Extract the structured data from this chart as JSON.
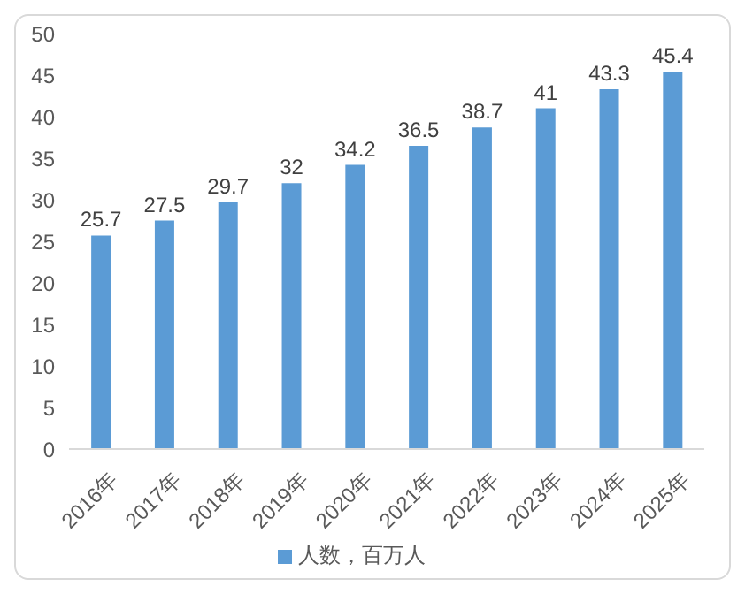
{
  "chart_data": {
    "type": "bar",
    "categories": [
      "2016年",
      "2017年",
      "2018年",
      "2019年",
      "2020年",
      "2021年",
      "2022年",
      "2023年",
      "2024年",
      "2025年"
    ],
    "series": [
      {
        "name": "人数，百万人",
        "color": "#5b9bd5",
        "values": [
          25.7,
          27.5,
          29.7,
          32,
          34.2,
          36.5,
          38.7,
          41,
          43.3,
          45.4
        ]
      }
    ],
    "ylim": [
      0,
      50
    ],
    "yticks": [
      0,
      5,
      10,
      15,
      20,
      25,
      30,
      35,
      40,
      45,
      50
    ],
    "data_labels": true,
    "legend": "bottom",
    "grid": false
  }
}
